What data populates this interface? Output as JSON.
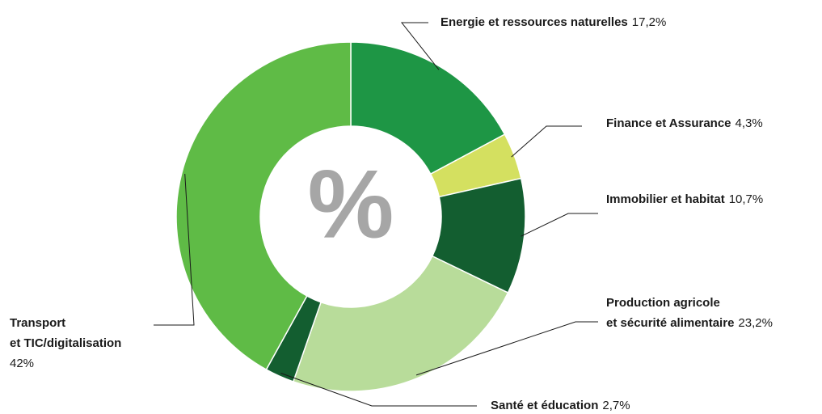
{
  "chart_data": {
    "type": "donut",
    "center_label": "%",
    "categories": [
      "Energie et ressources naturelles",
      "Finance et Assurance",
      "Immobilier et habitat",
      "Production agricole\net sécurité alimentaire",
      "Santé et éducation",
      "Transport\net TIC/digitalisation"
    ],
    "values": [
      17.2,
      4.3,
      10.7,
      23.2,
      2.7,
      42
    ],
    "value_labels": [
      "17,2%",
      "4,3%",
      "10,7%",
      "23,2%",
      "2,7%",
      "42%"
    ],
    "colors": [
      "#1e9645",
      "#d4e060",
      "#135e30",
      "#b8dc9a",
      "#135e30",
      "#5fbb46"
    ]
  }
}
